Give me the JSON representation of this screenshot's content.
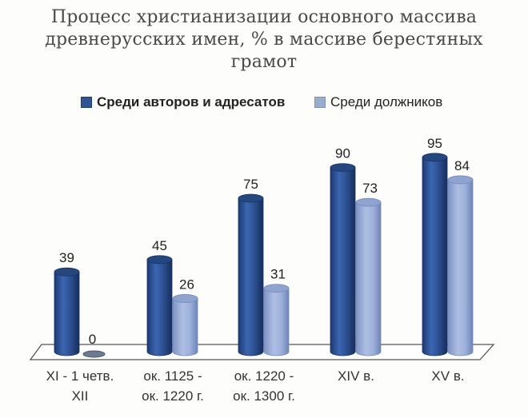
{
  "chart_data": {
    "type": "bar",
    "style": "3d-cylinder",
    "title": "Процесс христианизации основного массива древнерусских имен, %  в массиве берестяных грамот",
    "title_lines": [
      "Процесс христианизации основного массива",
      "древнерусских имен, %  в массиве берестяных",
      "грамот"
    ],
    "categories": [
      "XI - 1 четв. XII",
      "ок. 1125 - ок. 1220 г.",
      "ок. 1220 - ок. 1300 г.",
      "XIV в.",
      "XV в."
    ],
    "category_lines": [
      [
        "XI - 1 четв.",
        "XII"
      ],
      [
        "ок. 1125 -",
        "ок. 1220 г."
      ],
      [
        "ок. 1220 -",
        "ок. 1300 г."
      ],
      [
        "XIV в."
      ],
      [
        "XV в."
      ]
    ],
    "series": [
      {
        "name": "Среди авторов и адресатов",
        "color": "#2f5597",
        "values": [
          39,
          45,
          75,
          90,
          95
        ]
      },
      {
        "name": "Среди должников",
        "color": "#8ea5d3",
        "values": [
          0,
          26,
          31,
          73,
          84
        ]
      }
    ],
    "xlabel": "",
    "ylabel": "",
    "ylim": [
      0,
      100
    ],
    "grid": false,
    "legend_position": "top",
    "data_labels": true
  }
}
